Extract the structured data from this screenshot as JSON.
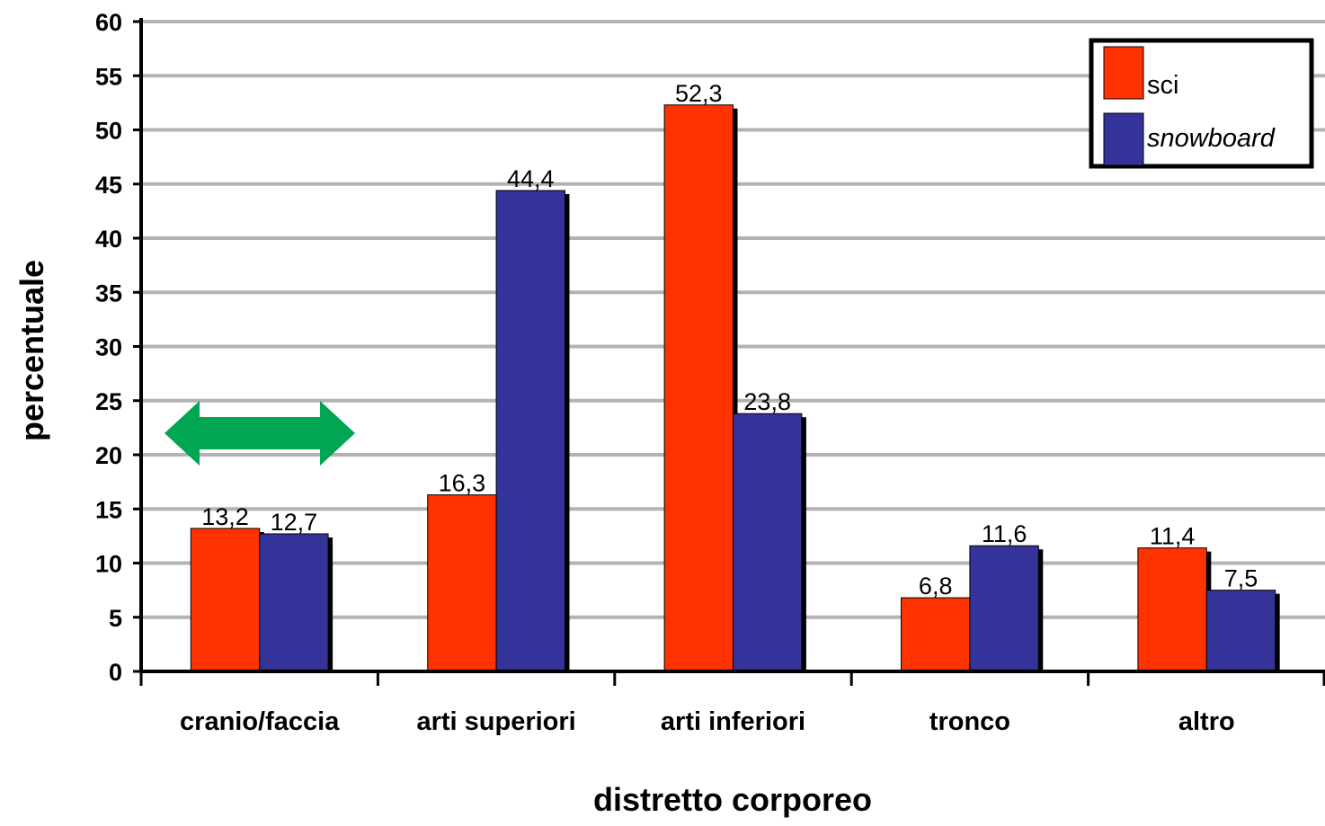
{
  "chart_data": {
    "type": "bar",
    "title": "",
    "xlabel": "distretto corporeo",
    "ylabel": "percentuale",
    "ylim": [
      0,
      60
    ],
    "ytick_step": 5,
    "grid": true,
    "legend_position": "top-right",
    "categories": [
      "cranio/faccia",
      "arti superiori",
      "arti inferiori",
      "tronco",
      "altro"
    ],
    "series": [
      {
        "name": "sci",
        "color": "#ff3300",
        "values": [
          13.2,
          16.3,
          52.3,
          6.8,
          11.4
        ],
        "labels": [
          "13,2",
          "16,3",
          "52,3",
          "6,8",
          "11,4"
        ]
      },
      {
        "name": "snowboard",
        "color": "#333399",
        "values": [
          12.7,
          44.4,
          23.8,
          11.6,
          7.5
        ],
        "labels": [
          "12,7",
          "44,4",
          "23,8",
          "11,6",
          "7,5"
        ]
      }
    ],
    "annotations": [
      {
        "type": "double-arrow",
        "color": "#00a651",
        "near_category": "cranio/faccia"
      }
    ]
  }
}
